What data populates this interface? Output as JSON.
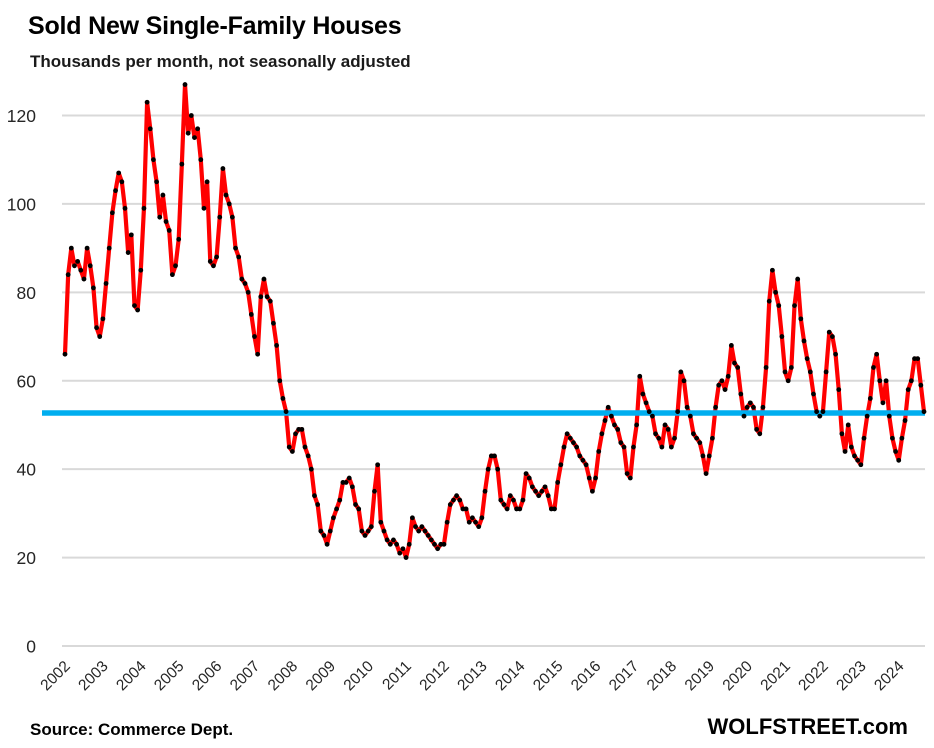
{
  "chart_data": {
    "type": "line",
    "title": "Sold New Single-Family Houses",
    "subtitle": "Thousands per month, not seasonally adjusted",
    "x_start": "2002-01",
    "x_frequency": "monthly",
    "x_tick_years": [
      2002,
      2003,
      2004,
      2005,
      2006,
      2007,
      2008,
      2009,
      2010,
      2011,
      2012,
      2013,
      2014,
      2015,
      2016,
      2017,
      2018,
      2019,
      2020,
      2021,
      2022,
      2023,
      2024
    ],
    "yticks": [
      0,
      20,
      40,
      60,
      80,
      100,
      120
    ],
    "ylim": [
      0,
      130
    ],
    "grid": true,
    "grid_color": "#d9d9d9",
    "legend_position": "none",
    "series": [
      {
        "name": "New single-family houses sold per month, thousands, not seasonally adjusted",
        "color": "#ff0000",
        "marker_color": "#000000",
        "values": [
          66,
          84,
          90,
          86,
          87,
          85,
          83,
          90,
          86,
          81,
          72,
          70,
          74,
          82,
          90,
          98,
          103,
          107,
          105,
          99,
          89,
          93,
          77,
          76,
          85,
          99,
          123,
          117,
          110,
          105,
          97,
          102,
          96,
          94,
          84,
          86,
          92,
          109,
          127,
          116,
          120,
          115,
          117,
          110,
          99,
          105,
          87,
          86,
          88,
          97,
          108,
          102,
          100,
          97,
          90,
          88,
          83,
          82,
          80,
          75,
          70,
          66,
          79,
          83,
          79,
          78,
          73,
          68,
          60,
          56,
          53,
          45,
          44,
          48,
          49,
          49,
          45,
          43,
          40,
          34,
          32,
          26,
          25,
          23,
          26,
          29,
          31,
          33,
          37,
          37,
          38,
          36,
          32,
          31,
          26,
          25,
          26,
          27,
          35,
          41,
          28,
          26,
          24,
          23,
          24,
          23,
          21,
          22,
          20,
          23,
          29,
          27,
          26,
          27,
          26,
          25,
          24,
          23,
          22,
          23,
          23,
          28,
          32,
          33,
          34,
          33,
          31,
          31,
          28,
          29,
          28,
          27,
          29,
          35,
          40,
          43,
          43,
          40,
          33,
          32,
          31,
          34,
          33,
          31,
          31,
          33,
          39,
          38,
          36,
          35,
          34,
          35,
          36,
          34,
          31,
          31,
          37,
          41,
          45,
          48,
          47,
          46,
          45,
          43,
          42,
          41,
          38,
          35,
          38,
          44,
          48,
          51,
          54,
          52,
          50,
          49,
          46,
          45,
          39,
          38,
          45,
          50,
          61,
          57,
          55,
          53,
          52,
          48,
          47,
          45,
          50,
          49,
          45,
          47,
          53,
          62,
          60,
          54,
          52,
          48,
          47,
          46,
          43,
          39,
          43,
          47,
          54,
          59,
          60,
          58,
          61,
          68,
          64,
          63,
          57,
          52,
          54,
          55,
          54,
          49,
          48,
          54,
          63,
          78,
          85,
          80,
          77,
          70,
          62,
          60,
          63,
          77,
          83,
          74,
          69,
          65,
          62,
          57,
          53,
          52,
          53,
          62,
          71,
          70,
          66,
          58,
          48,
          44,
          50,
          45,
          43,
          42,
          41,
          47,
          52,
          56,
          63,
          66,
          60,
          55,
          60,
          52,
          47,
          44,
          42,
          47,
          51,
          58,
          60,
          65,
          65,
          59,
          53
        ]
      }
    ],
    "reference_line": {
      "value": 52.7,
      "color": "#00AEEF"
    }
  },
  "footer": {
    "source": "Source: Commerce Dept.",
    "watermark": "WOLFSTREET.com"
  }
}
